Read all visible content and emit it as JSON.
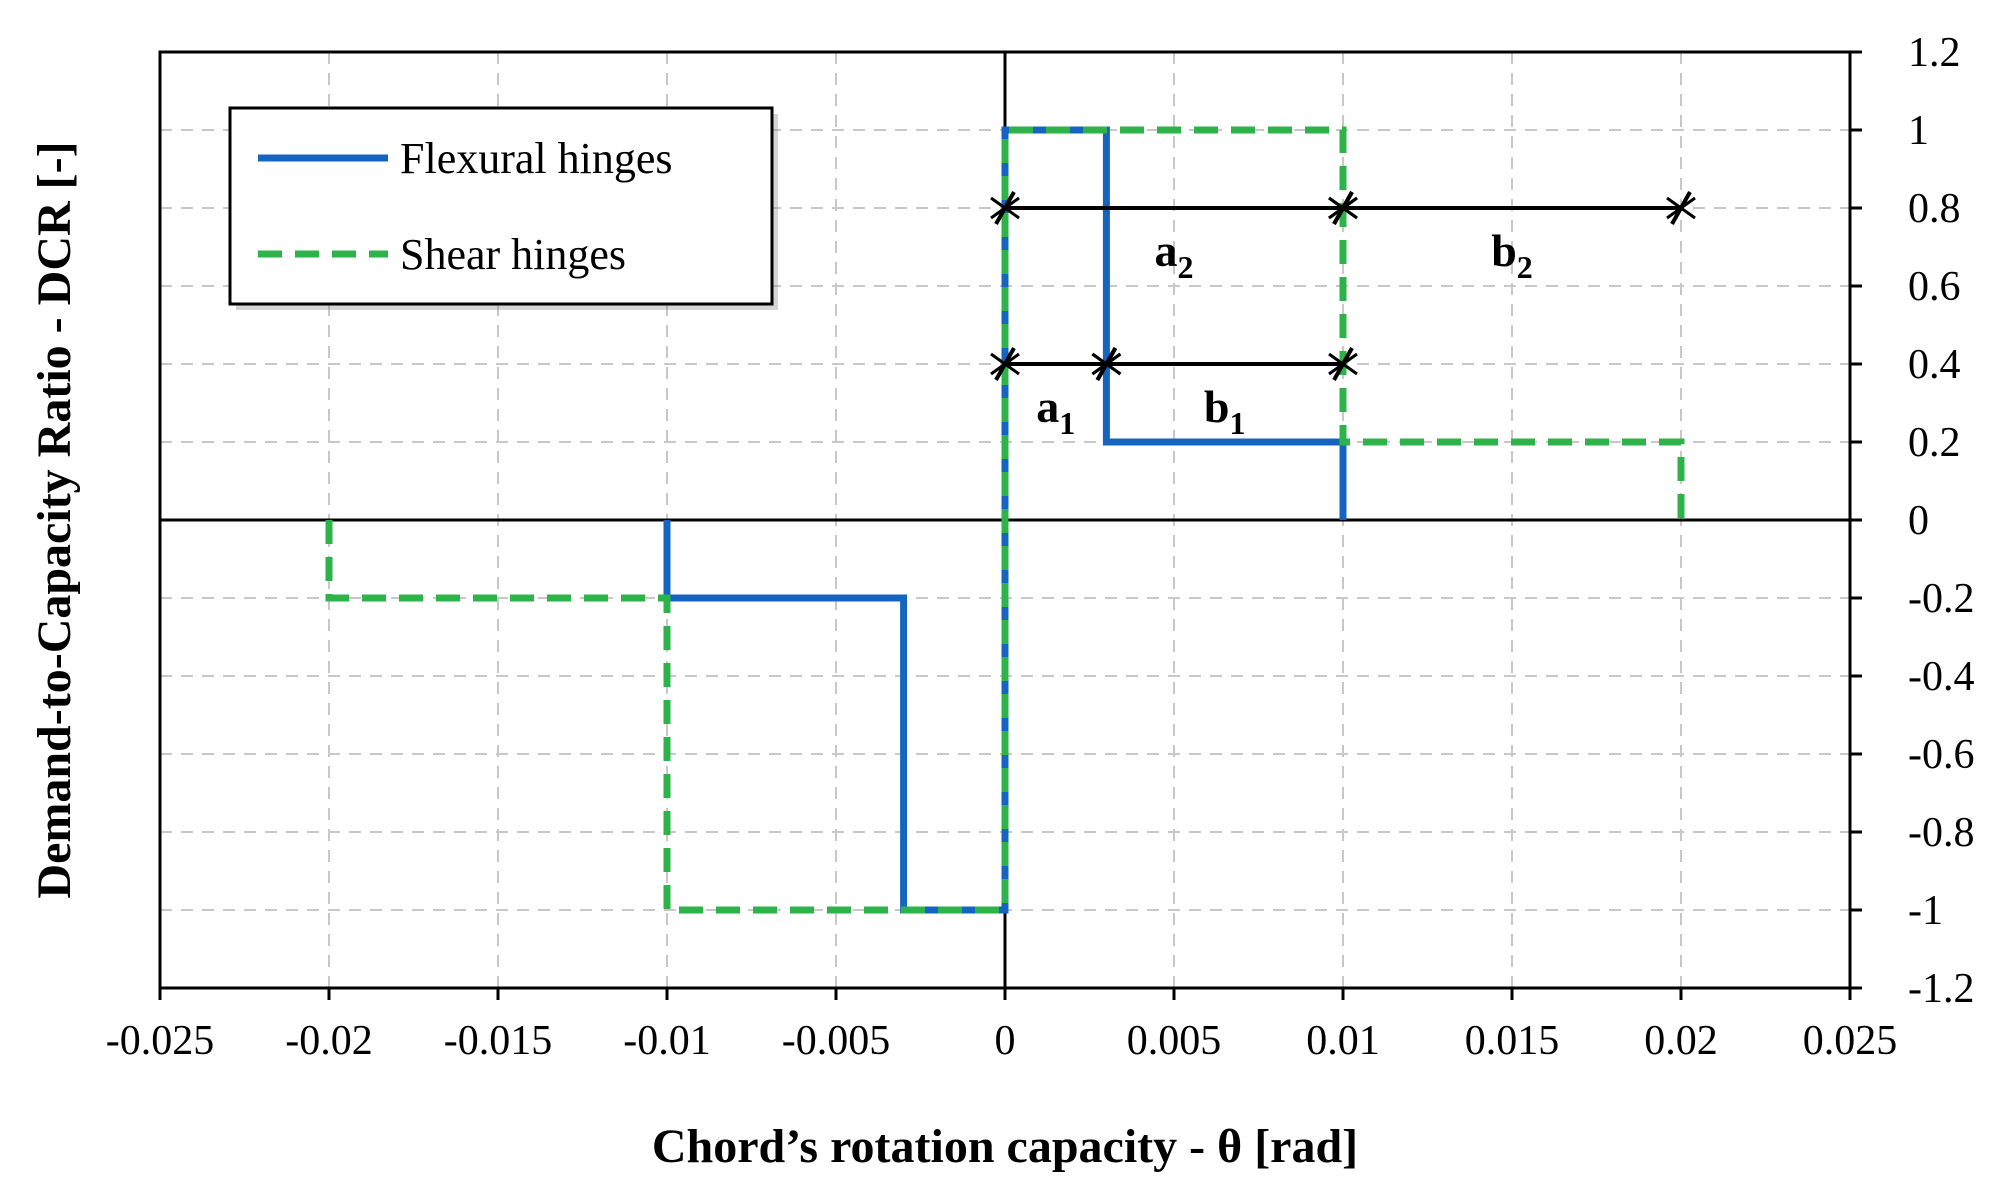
{
  "chart_data": {
    "type": "line",
    "xlabel": "Chord’s rotation capacity - θ [rad]",
    "ylabel": "Demand-to-Capacity Ratio - DCR [-]",
    "xlim": [
      -0.025,
      0.025
    ],
    "ylim": [
      -1.2,
      1.2
    ],
    "x_ticks": [
      -0.025,
      -0.02,
      -0.015,
      -0.01,
      -0.005,
      0,
      0.005,
      0.01,
      0.015,
      0.02,
      0.025
    ],
    "y_ticks": [
      -1.2,
      -1,
      -0.8,
      -0.6,
      -0.4,
      -0.2,
      0,
      0.2,
      0.4,
      0.6,
      0.8,
      1,
      1.2
    ],
    "x_tick_labels": [
      "-0.025",
      "-0.02",
      "-0.015",
      "-0.01",
      "-0.005",
      "0",
      "0.005",
      "0.01",
      "0.015",
      "0.02",
      "0.025"
    ],
    "y_tick_labels": [
      "-1.2",
      "-1",
      "-0.8",
      "-0.6",
      "-0.4",
      "-0.2",
      "0",
      "0.2",
      "0.4",
      "0.6",
      "0.8",
      "1",
      "1.2"
    ],
    "y_axis_side": "right",
    "grid": true,
    "legend_position": "top-left",
    "series": [
      {
        "name": "Flexural hinges",
        "color": "#1565C0",
        "style": "solid",
        "points": [
          [
            -0.01,
            0
          ],
          [
            -0.01,
            -0.2
          ],
          [
            -0.003,
            -0.2
          ],
          [
            -0.003,
            -1
          ],
          [
            0,
            -1
          ],
          [
            0,
            1
          ],
          [
            0.003,
            1
          ],
          [
            0.003,
            0.2
          ],
          [
            0.01,
            0.2
          ],
          [
            0.01,
            0
          ]
        ]
      },
      {
        "name": "Shear hinges",
        "color": "#2DB34A",
        "style": "dashed",
        "points": [
          [
            -0.02,
            0
          ],
          [
            -0.02,
            -0.2
          ],
          [
            -0.01,
            -0.2
          ],
          [
            -0.01,
            -1
          ],
          [
            0,
            -1
          ],
          [
            0,
            1
          ],
          [
            0.01,
            1
          ],
          [
            0.01,
            0.2
          ],
          [
            0.02,
            0.2
          ],
          [
            0.02,
            0
          ]
        ]
      }
    ],
    "annotations": [
      {
        "label": "a",
        "sub": "1",
        "from": 0,
        "to": 0.003,
        "y": 0.4
      },
      {
        "label": "b",
        "sub": "1",
        "from": 0.003,
        "to": 0.01,
        "y": 0.4
      },
      {
        "label": "a",
        "sub": "2",
        "from": 0,
        "to": 0.01,
        "y": 0.8
      },
      {
        "label": "b",
        "sub": "2",
        "from": 0.01,
        "to": 0.02,
        "y": 0.8
      }
    ]
  }
}
